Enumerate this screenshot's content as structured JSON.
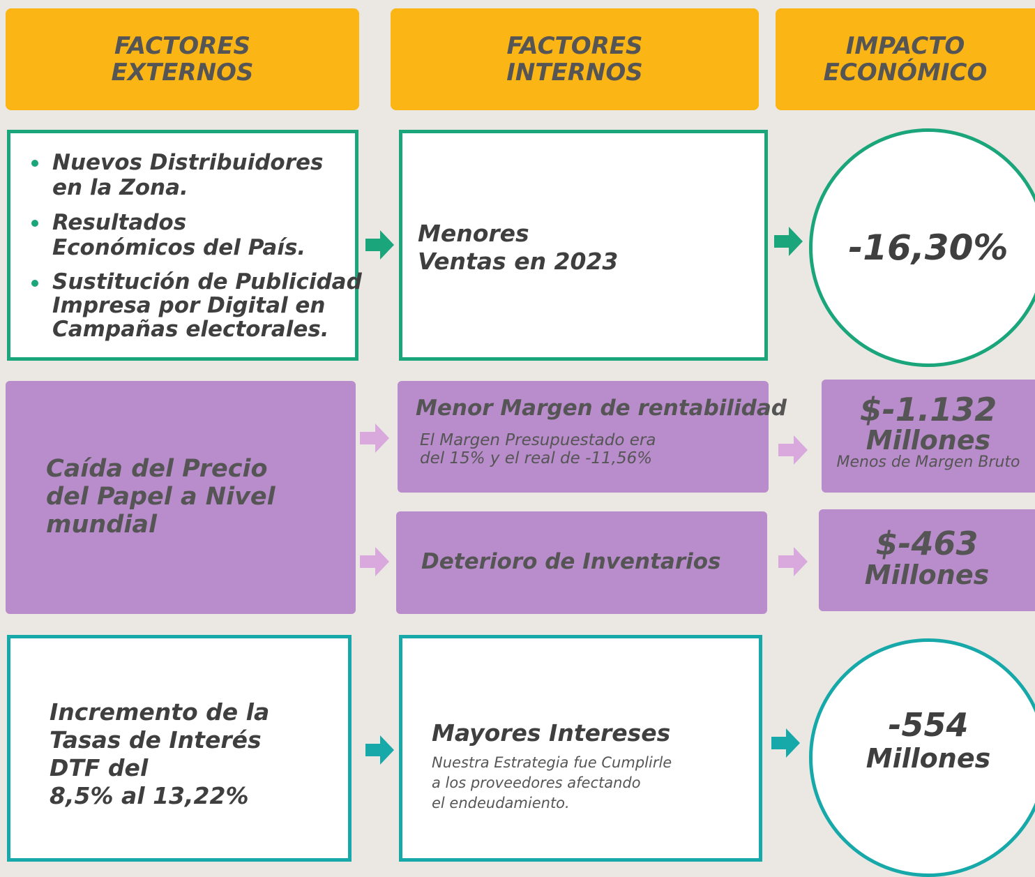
{
  "headers": [
    {
      "lines": [
        "FACTORES",
        "EXTERNOS"
      ]
    },
    {
      "lines": [
        "FACTORES",
        "INTERNOS"
      ]
    },
    {
      "lines": [
        "IMPACTO",
        "ECONÓMICO"
      ]
    }
  ],
  "rows": [
    {
      "external": {
        "bullets": [
          {
            "lines": [
              "Nuevos Distribuidores",
              "en la Zona."
            ]
          },
          {
            "lines": [
              "Resultados",
              "Económicos del País."
            ]
          },
          {
            "lines": [
              "Sustitución de Publicidad",
              "Impresa por Digital en",
              "Campañas electorales."
            ]
          }
        ]
      },
      "internal": [
        {
          "title": [
            "Menores",
            "Ventas en 2023"
          ]
        }
      ],
      "impact": [
        {
          "main": [
            "-16,30%"
          ]
        }
      ]
    },
    {
      "external": {
        "lines": [
          "Caída del Precio",
          "del Papel a Nivel",
          "mundial"
        ]
      },
      "internal": [
        {
          "title": [
            "Menor Margen de rentabilidad"
          ],
          "note": [
            "El Margen Presupuestado era",
            "del 15% y el real de -11,56%"
          ]
        },
        {
          "title": [
            "Deterioro de Inventarios"
          ]
        }
      ],
      "impact": [
        {
          "main": [
            "$-1.132",
            "Millones"
          ],
          "note": "Menos de Margen Bruto"
        },
        {
          "main": [
            "$-463",
            "Millones"
          ]
        }
      ]
    },
    {
      "external": {
        "lines": [
          "Incremento de la",
          "Tasas de Interés",
          "DTF del",
          "8,5% al 13,22%"
        ]
      },
      "internal": [
        {
          "title": [
            "Mayores Intereses"
          ],
          "note": [
            "Nuestra Estrategia fue Cumplirle",
            "a los proveedores afectando",
            "el endeudamiento."
          ]
        }
      ],
      "impact": [
        {
          "main": [
            "-554",
            "Millones"
          ]
        }
      ]
    }
  ]
}
